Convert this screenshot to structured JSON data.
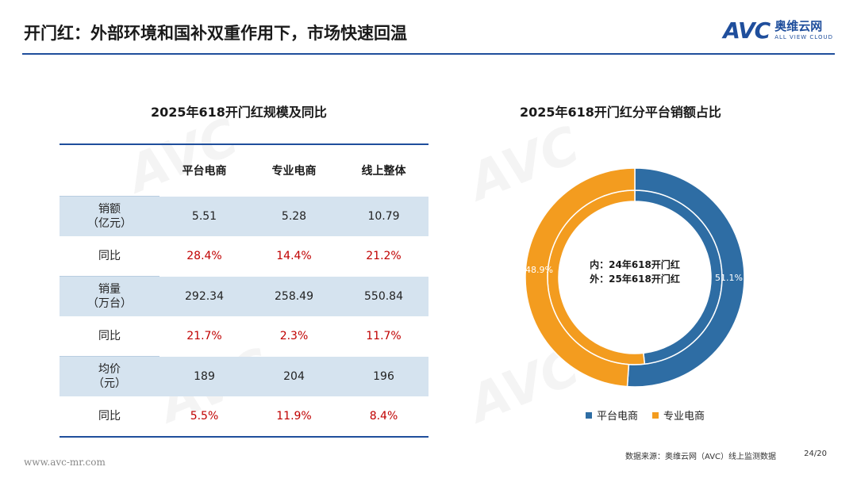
{
  "header": {
    "title": "开门红：外部环境和国补双重作用下，市场快速回温",
    "logo_mark": "AVC",
    "logo_cn": "奥维云网",
    "logo_en": "ALL VIEW CLOUD"
  },
  "table": {
    "title": "2025年618开门红规模及同比",
    "columns": [
      "平台电商",
      "专业电商",
      "线上整体"
    ],
    "rows": [
      {
        "label": "销额\n（亿元）",
        "values": [
          "5.51",
          "5.28",
          "10.79"
        ],
        "shaded": true,
        "red": false
      },
      {
        "label": "同比",
        "values": [
          "28.4%",
          "14.4%",
          "21.2%"
        ],
        "shaded": false,
        "red": true
      },
      {
        "label": "销量\n（万台）",
        "values": [
          "292.34",
          "258.49",
          "550.84"
        ],
        "shaded": true,
        "red": false
      },
      {
        "label": "同比",
        "values": [
          "21.7%",
          "2.3%",
          "11.7%"
        ],
        "shaded": false,
        "red": true
      },
      {
        "label": "均价\n（元）",
        "values": [
          "189",
          "204",
          "196"
        ],
        "shaded": true,
        "red": false
      },
      {
        "label": "同比",
        "values": [
          "5.5%",
          "11.9%",
          "8.4%"
        ],
        "shaded": false,
        "red": true
      }
    ]
  },
  "chart_data": {
    "type": "pie",
    "title": "2025年618开门红分平台销额占比",
    "center_labels": [
      "内：24年618开门红",
      "外：25年618开门红"
    ],
    "categories": [
      "平台电商",
      "专业电商"
    ],
    "colors": [
      "#2e6da4",
      "#f39c1f"
    ],
    "series": [
      {
        "name": "24年618开门红",
        "values": [
          48.2,
          51.8
        ],
        "labels": [
          "48.2%",
          "51.8%"
        ]
      },
      {
        "name": "25年618开门红",
        "values": [
          51.1,
          48.9
        ],
        "labels": [
          "51.1%",
          "48.9%"
        ]
      }
    ],
    "legend_position": "bottom"
  },
  "footer": {
    "source": "数据来源：奥维云网（AVC）线上监测数据",
    "page": "24/20",
    "url": "www.avc-mr.com"
  }
}
